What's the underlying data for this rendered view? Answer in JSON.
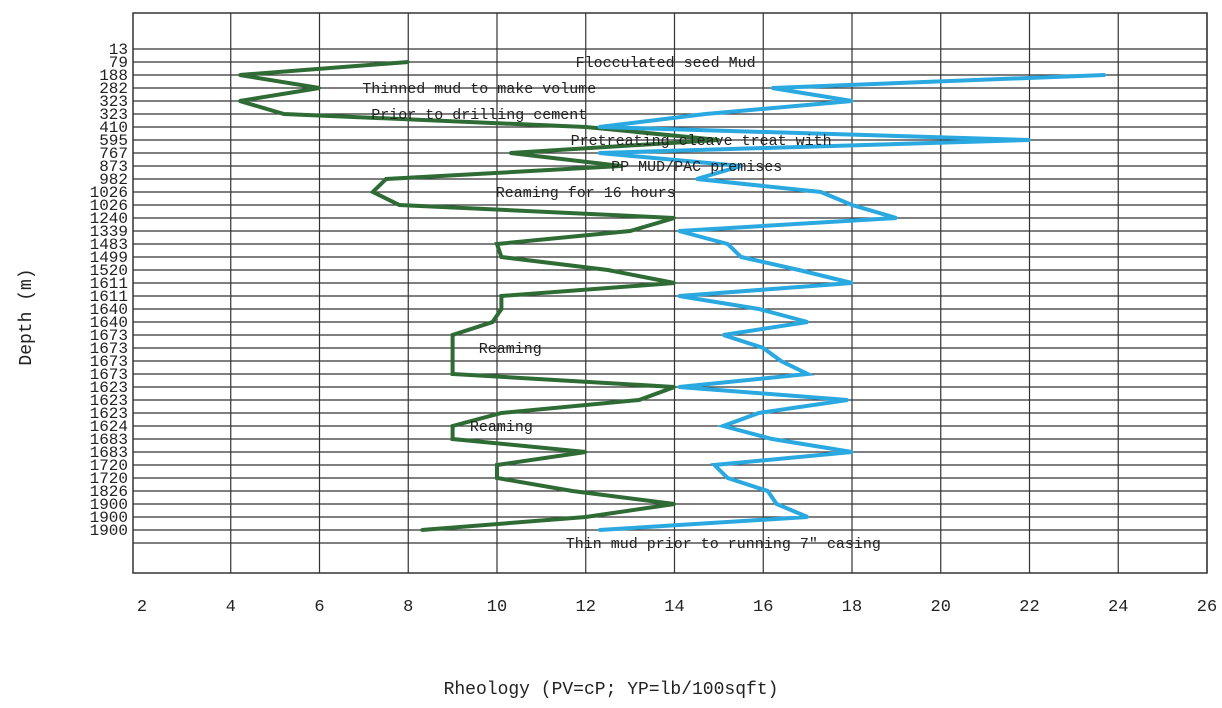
{
  "chart_data": {
    "type": "line",
    "xlabel": "Rheology (PV=cP; YP=lb/100sqft)",
    "ylabel": "Depth (m)",
    "xlim": [
      2,
      26
    ],
    "x_ticks": [
      2,
      4,
      6,
      8,
      10,
      12,
      14,
      16,
      18,
      20,
      22,
      24,
      26
    ],
    "grid": true,
    "legend": "none",
    "categories": [
      "13",
      "79",
      "188",
      "282",
      "323",
      "323",
      "410",
      "595",
      "767",
      "873",
      "982",
      "1026",
      "1026",
      "1240",
      "1339",
      "1483",
      "1499",
      "1520",
      "1611",
      "1611",
      "1640",
      "1640",
      "1673",
      "1673",
      "1673",
      "1673",
      "1623",
      "1623",
      "1623",
      "1624",
      "1683",
      "1683",
      "1720",
      "1720",
      "1826",
      "1900",
      "1900",
      "1900"
    ],
    "series": [
      {
        "color": "#2f6b35",
        "values": [
          null,
          8,
          4.2,
          6,
          4.2,
          5.2,
          12,
          15,
          10.3,
          12.8,
          7.5,
          7.2,
          7.8,
          14,
          13,
          10,
          10.1,
          12.5,
          14,
          10.1,
          10.1,
          9.9,
          9,
          9,
          9,
          9,
          14,
          13.2,
          10.1,
          9,
          9,
          12,
          10,
          10,
          11.7,
          14,
          12,
          8.3
        ]
      },
      {
        "color": "#2aa8e0",
        "values": [
          null,
          null,
          23.7,
          16.2,
          18,
          14.7,
          12.3,
          22,
          12.3,
          15.5,
          14.5,
          17.3,
          18,
          19,
          14.1,
          15.2,
          15.5,
          16.8,
          18,
          14.1,
          15.9,
          17,
          15.1,
          16,
          16.4,
          17,
          14.1,
          17.9,
          15.9,
          15.1,
          16.2,
          18,
          14.9,
          15.2,
          16.1,
          16.3,
          17,
          12.3
        ]
      }
    ],
    "annotations": [
      {
        "text": "Flocculated seed Mud",
        "x": 13.8,
        "depth_index": 1
      },
      {
        "text": "Thinned mud to make volume",
        "x": 9.6,
        "depth_index": 3
      },
      {
        "text": "Prior to drilling cement",
        "x": 9.6,
        "depth_index": 5
      },
      {
        "text": "Pretreating cleave treat with",
        "x": 14.6,
        "depth_index": 7
      },
      {
        "text": "PP MUD/PAC premises",
        "x": 14.5,
        "depth_index": 9
      },
      {
        "text": "Reaming for 16 hours",
        "x": 12,
        "depth_index": 11
      },
      {
        "text": "Reaming",
        "x": 10.3,
        "depth_index": 23
      },
      {
        "text": "Reaming",
        "x": 10.1,
        "depth_index": 29
      },
      {
        "text": "Thin mud prior to running 7\" casing",
        "x": 15.1,
        "depth_index": 38
      }
    ]
  }
}
